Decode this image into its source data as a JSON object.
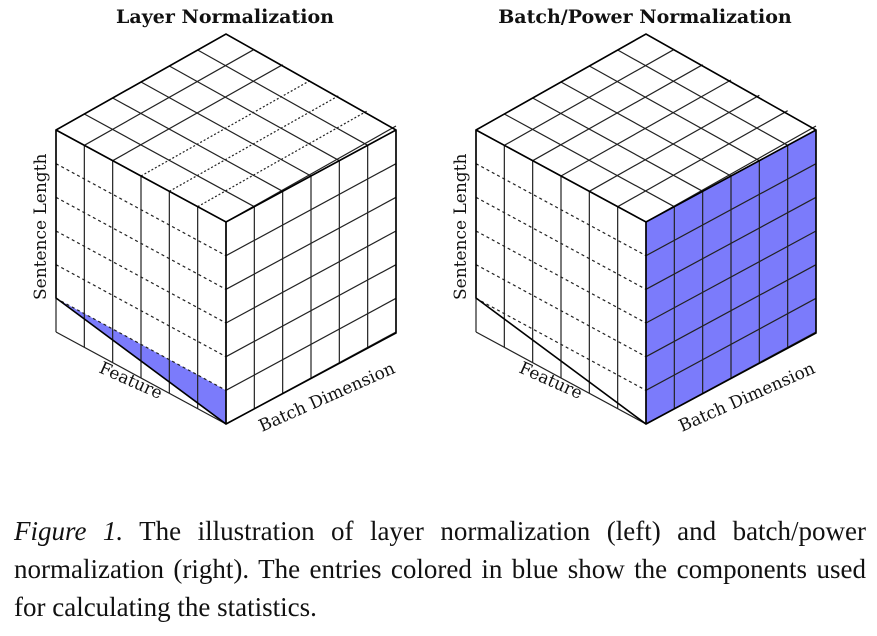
{
  "diagrams": [
    {
      "title": "Layer Normalization",
      "labels": {
        "vertical": "Sentence Length",
        "left_axis": "Feature",
        "right_axis": "Batch Dimension"
      },
      "highlight": "bottom-row"
    },
    {
      "title": "Batch/Power Normalization",
      "labels": {
        "vertical": "Sentence Length",
        "left_axis": "Feature",
        "right_axis": "Batch Dimension"
      },
      "highlight": "right-face"
    }
  ],
  "caption": {
    "lead": "Figure 1.",
    "text": "The illustration of layer normalization (left) and batch/power normalization (right). The entries colored in blue show the components used for calculating the statistics."
  },
  "colors": {
    "highlight": "#7b7bfb",
    "highlight_top": "#9090fc",
    "grid": "#222222",
    "dotted": "#333333"
  }
}
